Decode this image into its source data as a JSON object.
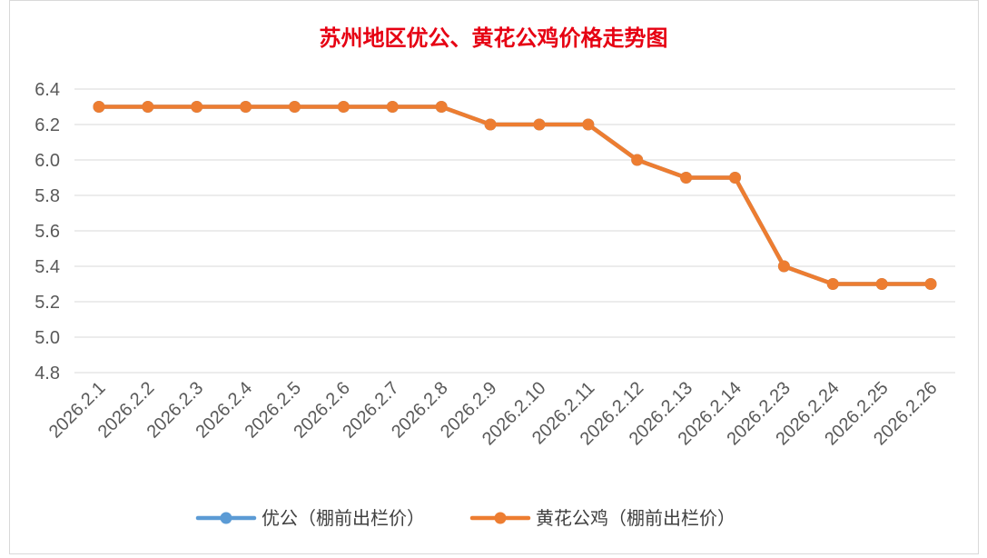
{
  "chart_data": {
    "type": "line",
    "title": "苏州地区优公、黄花公鸡价格走势图",
    "categories": [
      "2026.2.1",
      "2026.2.2",
      "2026.2.3",
      "2026.2.4",
      "2026.2.5",
      "2026.2.6",
      "2026.2.7",
      "2026.2.8",
      "2026.2.9",
      "2026.2.10",
      "2026.2.11",
      "2026.2.12",
      "2026.2.13",
      "2026.2.14",
      "2026.2.23",
      "2026.2.24",
      "2026.2.25",
      "2026.2.26"
    ],
    "series": [
      {
        "name": "优公（棚前出栏价）",
        "color": "#5b9bd5",
        "values": [
          6.3,
          6.3,
          6.3,
          6.3,
          6.3,
          6.3,
          6.3,
          6.3,
          6.2,
          6.2,
          6.2,
          6.0,
          5.9,
          5.9,
          5.4,
          5.3,
          5.3,
          5.3
        ]
      },
      {
        "name": "黄花公鸡（棚前出栏价）",
        "color": "#ed7d31",
        "values": [
          6.3,
          6.3,
          6.3,
          6.3,
          6.3,
          6.3,
          6.3,
          6.3,
          6.2,
          6.2,
          6.2,
          6.0,
          5.9,
          5.9,
          5.4,
          5.3,
          5.3,
          5.3
        ]
      }
    ],
    "yticks": [
      "6.4",
      "6.2",
      "6.0",
      "5.8",
      "5.6",
      "5.4",
      "5.2",
      "5.0",
      "4.8"
    ],
    "ylim": [
      4.8,
      6.4
    ],
    "grid": true,
    "legend_position": "bottom",
    "xlabel": "",
    "ylabel": ""
  }
}
